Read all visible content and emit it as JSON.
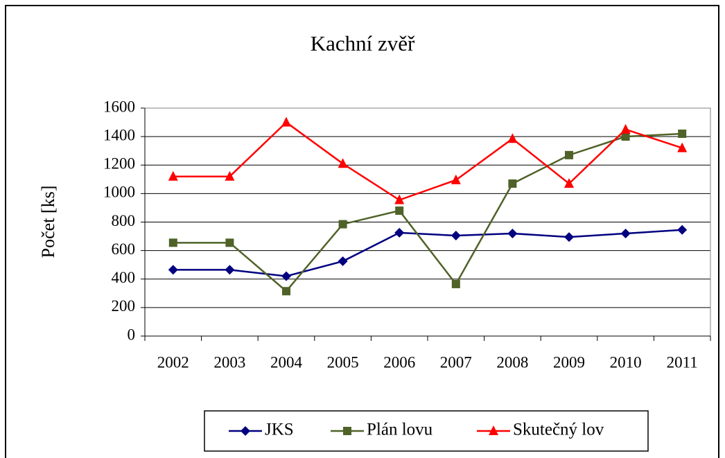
{
  "chart_data": {
    "type": "line",
    "title": "Kachní zvěř",
    "y_label": "Počet [ks]",
    "categories": [
      "2002",
      "2003",
      "2004",
      "2005",
      "2006",
      "2007",
      "2008",
      "2009",
      "2010",
      "2011"
    ],
    "series": [
      {
        "name": "JKS",
        "color": "#000080",
        "marker": "diamond",
        "values": [
          465,
          465,
          420,
          525,
          725,
          705,
          720,
          695,
          720,
          745
        ]
      },
      {
        "name": "Plán lovu",
        "color": "#4f6228",
        "marker": "square",
        "values": [
          655,
          655,
          315,
          785,
          880,
          365,
          1070,
          1270,
          1400,
          1420
        ]
      },
      {
        "name": "Skutečný lov",
        "color": "#ff0000",
        "marker": "triangle",
        "values": [
          1120,
          1120,
          1500,
          1210,
          955,
          1095,
          1385,
          1070,
          1450,
          1320
        ]
      }
    ],
    "ylim": [
      0,
      1600
    ],
    "yticks": [
      0,
      200,
      400,
      600,
      800,
      1000,
      1200,
      1400,
      1600
    ],
    "grid": true,
    "legend": "bottom"
  }
}
